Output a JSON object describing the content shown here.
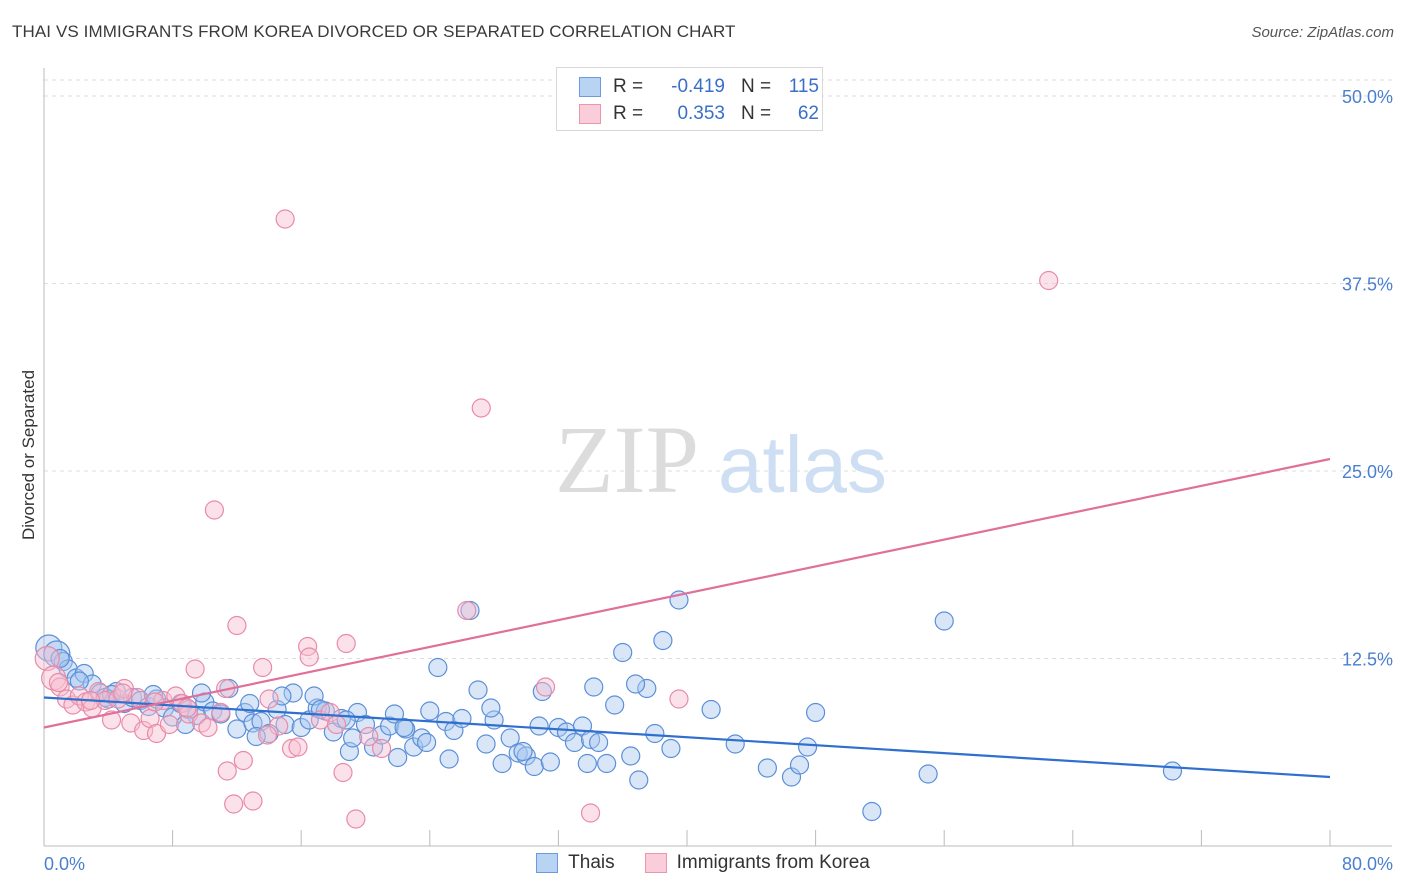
{
  "header": {
    "title": "THAI VS IMMIGRANTS FROM KOREA DIVORCED OR SEPARATED CORRELATION CHART",
    "source": "Source: ZipAtlas.com"
  },
  "legend": {
    "rows": [
      {
        "r_label": "R =",
        "r_value": "-0.419",
        "n_label": "N =",
        "n_value": "115"
      },
      {
        "r_label": "R =",
        "r_value": "0.353",
        "n_label": "N =",
        "n_value": "62"
      }
    ]
  },
  "bottom_legend": {
    "items": [
      {
        "label": "Thais"
      },
      {
        "label": "Immigrants from Korea"
      }
    ]
  },
  "watermark": {
    "zip": "ZIP",
    "atlas": "atlas"
  },
  "colors": {
    "blue_fill": "#a9c8f0",
    "blue_stroke": "#5b8fd8",
    "blue_line": "#2f6fce",
    "pink_fill": "#f6bfd0",
    "pink_stroke": "#e98aa8",
    "pink_line": "#e0709a",
    "tick_text": "#4a7fd0"
  },
  "chart_data": {
    "type": "scatter",
    "title": "THAI VS IMMIGRANTS FROM KOREA DIVORCED OR SEPARATED CORRELATION CHART",
    "ylabel": "Divorced or Separated",
    "xlabel": "",
    "xlim": [
      0,
      80
    ],
    "ylim": [
      0,
      50
    ],
    "x_tick_labels": [
      "0.0%",
      "80.0%"
    ],
    "y_ticks": [
      12.5,
      25.0,
      37.5,
      50.0
    ],
    "y_tick_labels": [
      "12.5%",
      "25.0%",
      "37.5%",
      "50.0%"
    ],
    "grid": true,
    "series": [
      {
        "name": "Thais",
        "color": "#5b8fd8",
        "trend": {
          "x": [
            0,
            80
          ],
          "y": [
            9.9,
            4.6
          ]
        },
        "points": [
          [
            0.3,
            13.2
          ],
          [
            0.8,
            12.8
          ],
          [
            1.2,
            12.3
          ],
          [
            1.5,
            11.8
          ],
          [
            2.0,
            11.2
          ],
          [
            2.5,
            11.5
          ],
          [
            3.0,
            10.8
          ],
          [
            3.5,
            10.2
          ],
          [
            4.0,
            9.8
          ],
          [
            4.5,
            10.3
          ],
          [
            5.0,
            9.5
          ],
          [
            5.5,
            9.9
          ],
          [
            6.0,
            9.7
          ],
          [
            6.5,
            9.3
          ],
          [
            7.0,
            9.8
          ],
          [
            7.5,
            9.2
          ],
          [
            8.0,
            8.6
          ],
          [
            8.5,
            9.5
          ],
          [
            9.0,
            9.1
          ],
          [
            9.5,
            8.7
          ],
          [
            10.0,
            9.6
          ],
          [
            10.5,
            9.0
          ],
          [
            11.0,
            8.8
          ],
          [
            11.5,
            10.5
          ],
          [
            12.0,
            7.8
          ],
          [
            12.5,
            8.9
          ],
          [
            13.0,
            8.2
          ],
          [
            13.5,
            8.3
          ],
          [
            14.0,
            7.5
          ],
          [
            14.5,
            9.1
          ],
          [
            15.0,
            8.1
          ],
          [
            15.5,
            10.2
          ],
          [
            16.0,
            7.9
          ],
          [
            16.5,
            8.4
          ],
          [
            17.0,
            9.2
          ],
          [
            17.5,
            9.0
          ],
          [
            18.0,
            7.6
          ],
          [
            18.5,
            8.5
          ],
          [
            19.0,
            6.3
          ],
          [
            19.5,
            8.9
          ],
          [
            20.0,
            8.1
          ],
          [
            20.5,
            6.6
          ],
          [
            21.0,
            7.4
          ],
          [
            21.5,
            8.0
          ],
          [
            22.0,
            5.9
          ],
          [
            22.5,
            7.8
          ],
          [
            23.0,
            6.6
          ],
          [
            23.5,
            7.2
          ],
          [
            24.0,
            9.0
          ],
          [
            24.5,
            11.9
          ],
          [
            25.0,
            8.3
          ],
          [
            25.5,
            7.7
          ],
          [
            26.0,
            8.5
          ],
          [
            26.5,
            15.7
          ],
          [
            27.0,
            10.4
          ],
          [
            27.5,
            6.8
          ],
          [
            28.0,
            8.4
          ],
          [
            28.5,
            5.5
          ],
          [
            29.0,
            7.2
          ],
          [
            29.5,
            6.2
          ],
          [
            30.0,
            6.0
          ],
          [
            30.5,
            5.3
          ],
          [
            31.0,
            10.3
          ],
          [
            31.5,
            5.6
          ],
          [
            32.0,
            7.9
          ],
          [
            32.5,
            7.6
          ],
          [
            33.0,
            6.9
          ],
          [
            33.5,
            8.0
          ],
          [
            34.0,
            7.1
          ],
          [
            34.5,
            6.9
          ],
          [
            35.0,
            5.5
          ],
          [
            35.5,
            9.4
          ],
          [
            36.0,
            12.9
          ],
          [
            36.5,
            6.0
          ],
          [
            37.0,
            4.4
          ],
          [
            37.5,
            10.5
          ],
          [
            38.0,
            7.5
          ],
          [
            38.5,
            13.7
          ],
          [
            39.0,
            6.5
          ],
          [
            39.5,
            16.4
          ],
          [
            41.5,
            9.1
          ],
          [
            43.0,
            6.8
          ],
          [
            45.0,
            5.2
          ],
          [
            46.5,
            4.6
          ],
          [
            47.0,
            5.4
          ],
          [
            47.5,
            6.6
          ],
          [
            48.0,
            8.9
          ],
          [
            51.5,
            2.3
          ],
          [
            55.0,
            4.8
          ],
          [
            56.0,
            15.0
          ],
          [
            2.2,
            11.0
          ],
          [
            3.8,
            9.9
          ],
          [
            6.8,
            10.1
          ],
          [
            8.8,
            8.1
          ],
          [
            12.8,
            9.5
          ],
          [
            14.8,
            10.0
          ],
          [
            16.8,
            10.0
          ],
          [
            18.8,
            8.4
          ],
          [
            21.8,
            8.8
          ],
          [
            23.8,
            6.9
          ],
          [
            27.8,
            9.2
          ],
          [
            30.8,
            8.0
          ],
          [
            33.8,
            5.5
          ],
          [
            36.8,
            10.8
          ],
          [
            70.2,
            5.0
          ],
          [
            1.0,
            12.5
          ],
          [
            4.2,
            10.1
          ],
          [
            9.8,
            10.2
          ],
          [
            13.2,
            7.3
          ],
          [
            17.2,
            9.1
          ],
          [
            19.2,
            7.2
          ],
          [
            22.4,
            7.9
          ],
          [
            25.2,
            5.8
          ],
          [
            29.8,
            6.3
          ],
          [
            34.2,
            10.6
          ]
        ]
      },
      {
        "name": "Immigrants from Korea",
        "color": "#e98aa8",
        "trend": {
          "x": [
            0,
            80
          ],
          "y": [
            7.9,
            25.8
          ]
        },
        "points": [
          [
            0.2,
            12.5
          ],
          [
            0.6,
            11.2
          ],
          [
            1.0,
            10.6
          ],
          [
            1.4,
            9.8
          ],
          [
            1.8,
            9.4
          ],
          [
            2.2,
            10.0
          ],
          [
            2.6,
            9.6
          ],
          [
            3.0,
            9.2
          ],
          [
            3.4,
            10.3
          ],
          [
            3.8,
            9.7
          ],
          [
            4.2,
            8.4
          ],
          [
            4.6,
            9.8
          ],
          [
            5.0,
            10.5
          ],
          [
            5.4,
            8.2
          ],
          [
            5.8,
            9.9
          ],
          [
            6.2,
            7.7
          ],
          [
            6.6,
            8.5
          ],
          [
            7.0,
            7.5
          ],
          [
            7.4,
            9.7
          ],
          [
            7.8,
            8.1
          ],
          [
            8.2,
            10.0
          ],
          [
            8.6,
            9.5
          ],
          [
            9.0,
            8.8
          ],
          [
            9.4,
            11.8
          ],
          [
            9.8,
            8.2
          ],
          [
            10.2,
            7.9
          ],
          [
            10.6,
            22.4
          ],
          [
            11.0,
            8.9
          ],
          [
            11.4,
            5.0
          ],
          [
            11.8,
            2.8
          ],
          [
            12.0,
            14.7
          ],
          [
            12.4,
            5.7
          ],
          [
            13.0,
            3.0
          ],
          [
            13.6,
            11.9
          ],
          [
            14.0,
            9.8
          ],
          [
            14.6,
            8.0
          ],
          [
            15.0,
            41.8
          ],
          [
            15.4,
            6.5
          ],
          [
            15.8,
            6.6
          ],
          [
            16.4,
            13.3
          ],
          [
            16.5,
            12.6
          ],
          [
            17.2,
            8.4
          ],
          [
            17.8,
            8.9
          ],
          [
            18.2,
            8.1
          ],
          [
            18.6,
            4.9
          ],
          [
            18.8,
            13.5
          ],
          [
            19.4,
            1.8
          ],
          [
            20.2,
            7.3
          ],
          [
            21.0,
            6.5
          ],
          [
            26.3,
            15.7
          ],
          [
            27.2,
            29.2
          ],
          [
            31.2,
            10.6
          ],
          [
            34.0,
            2.2
          ],
          [
            39.5,
            9.8
          ],
          [
            62.5,
            37.7
          ],
          [
            0.9,
            10.9
          ],
          [
            2.9,
            9.7
          ],
          [
            4.9,
            10.2
          ],
          [
            6.9,
            9.6
          ],
          [
            8.9,
            9.2
          ],
          [
            11.3,
            10.5
          ],
          [
            13.9,
            7.4
          ]
        ]
      }
    ]
  }
}
